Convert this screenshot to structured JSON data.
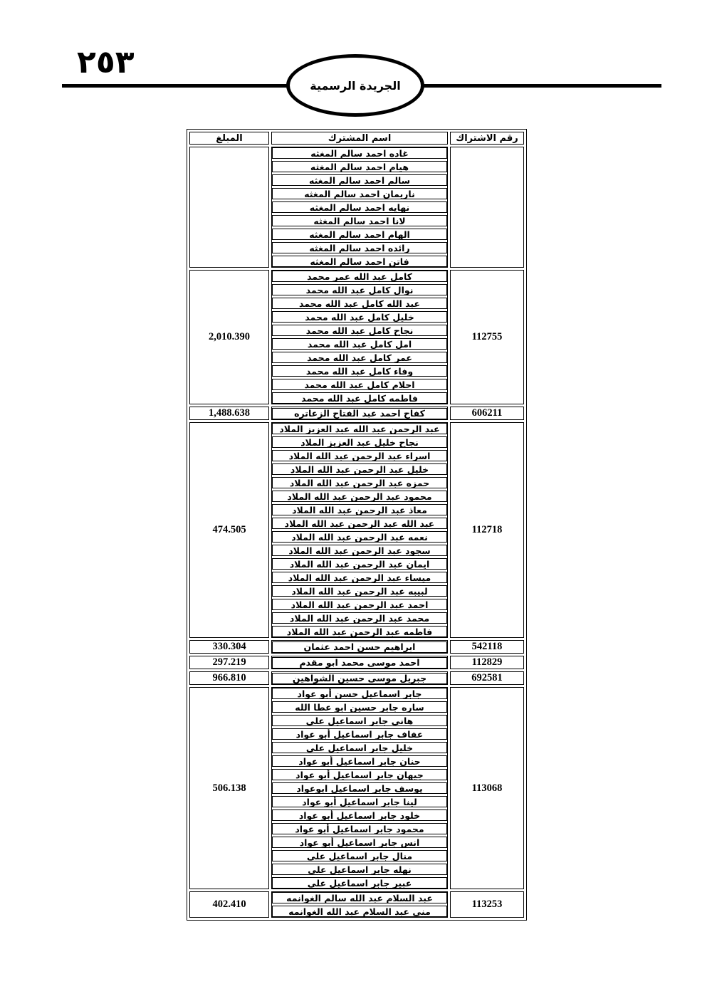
{
  "page": {
    "page_number": "٢٥٣",
    "banner": "الجريدة الرسمية"
  },
  "table": {
    "headers": {
      "subscription_no": "رقم الاشتراك",
      "name": "اسم المشترك",
      "amount": "المبلغ"
    },
    "groups": [
      {
        "subscription_no": "",
        "amount": "",
        "names": [
          "غاده احمد سالم المغثه",
          "هيام احمد سالم المغثه",
          "سالم احمد سالم المغثه",
          "ناريمان احمد سالم المغثه",
          "نهايه احمد سالم المغثه",
          "لانا احمد سالم المغثه",
          "الهام احمد سالم المغثه",
          "رائده احمد سالم المغثه",
          "فاتن احمد سالم المغثه"
        ]
      },
      {
        "subscription_no": "112755",
        "amount": "2,010.390",
        "names": [
          "كامل عبد الله عمر محمد",
          "نوال كامل عبد الله محمد",
          "عبد الله كامل عبد الله محمد",
          "خليل كامل عبد الله محمد",
          "نجاح كامل عبد الله محمد",
          "امل كامل عبد الله محمد",
          "عمر كامل عبد الله محمد",
          "وفاء كامل عبد الله محمد",
          "احلام كامل عبد الله محمد",
          "فاطمه كامل عبد الله محمد"
        ]
      },
      {
        "subscription_no": "606211",
        "amount": "1,488.638",
        "names": [
          "كفاح احمد عبد الفتاح الزعاتره"
        ]
      },
      {
        "subscription_no": "112718",
        "amount": "474.505",
        "names": [
          "عبد الرحمن عبد الله عبد العزيز الملاد",
          "نجاح خليل عبد العزيز الملاد",
          "اسراء عبد الرحمن عبد الله الملاد",
          "خليل عبد الرحمن عبد الله الملاد",
          "حمزه عبد الرحمن عبد الله الملاد",
          "محمود عبد الرحمن عبد الله الملاد",
          "معاذ عبد الرحمن عبد الله الملاد",
          "عبد الله عبد الرحمن عبد الله الملاد",
          "نعمه عبد الرحمن عبد الله الملاد",
          "سجود عبد الرحمن عبد الله الملاد",
          "ايمان عبد الرحمن عبد الله الملاد",
          "ميساء عبد الرحمن عبد الله الملاد",
          "لبيبه عبد الرحمن عبد الله الملاد",
          "احمد عبد الرحمن عبد الله الملاد",
          "محمد عبد الرحمن عبد الله الملاد",
          "فاطمه عبد الرحمن عبد الله الملاد"
        ]
      },
      {
        "subscription_no": "542118",
        "amount": "330.304",
        "names": [
          "ابراهيم حسن احمد عثمان"
        ]
      },
      {
        "subscription_no": "112829",
        "amount": "297.219",
        "names": [
          "احمد موسى محمد ابو مقدم"
        ]
      },
      {
        "subscription_no": "692581",
        "amount": "966.810",
        "names": [
          "جبريل موسى حسين الشواهين"
        ]
      },
      {
        "subscription_no": "113068",
        "amount": "506.138",
        "names": [
          "جابر اسماعيل حسن أبو عواد",
          "ساره جابر حسين ابو عطا الله",
          "هاني جابر اسماعيل علي",
          "عفاف جابر اسماعيل أبو عواد",
          "خليل جابر اسماعيل علي",
          "حنان جابر اسماعيل أبو عواد",
          "جيهان جابر اسماعيل أبو عواد",
          "يوسف جابر اسماعيل ابوعواد",
          "لينا جابر اسماعيل أبو عواد",
          "خلود جابر اسماعيل أبو عواد",
          "محمود جابر اسماعيل أبو عواد",
          "انس جابر اسماعيل أبو عواد",
          "منال جابر اسماعيل علي",
          "نهله جابر اسماعيل علي",
          "عبير جابر اسماعيل علي"
        ]
      },
      {
        "subscription_no": "113253",
        "amount": "402.410",
        "names": [
          "عبد السلام عبد الله سالم الغوانمه",
          "منى عبد السلام عبد الله الغوانمه"
        ]
      }
    ]
  }
}
